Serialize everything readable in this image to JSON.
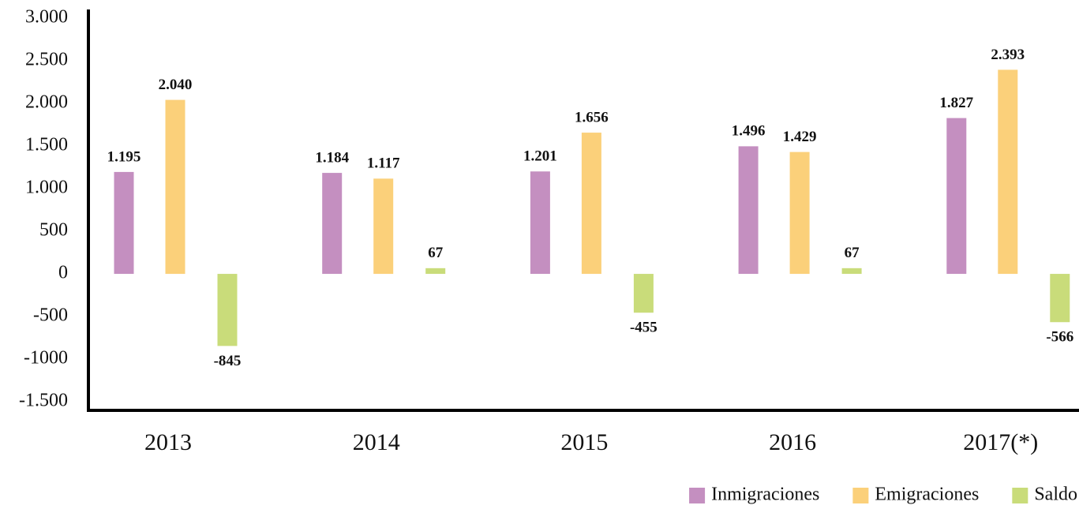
{
  "chart_data": {
    "type": "bar",
    "categories": [
      "2013",
      "2014",
      "2015",
      "2016",
      "2017(*)"
    ],
    "series": [
      {
        "name": "Inmigraciones",
        "color": "#c48fc0",
        "values": [
          1195,
          1184,
          1201,
          1496,
          1827
        ],
        "value_labels": [
          "1.195",
          "1.184",
          "1.201",
          "1.496",
          "1.827"
        ]
      },
      {
        "name": "Emigraciones",
        "color": "#fbd07a",
        "values": [
          2040,
          1117,
          1656,
          1429,
          2393
        ],
        "value_labels": [
          "2.040",
          "1.117",
          "1.656",
          "1.429",
          "2.393"
        ]
      },
      {
        "name": "Saldo",
        "color": "#c9dc7a",
        "values": [
          -845,
          67,
          -455,
          67,
          -566
        ]
      }
    ],
    "ylim": [
      -1600,
      3100
    ],
    "yticks": [
      {
        "value": -1500,
        "label": "-1.500"
      },
      -1000,
      -500,
      0,
      500,
      {
        "value": 1000,
        "label": "1.000"
      },
      {
        "value": 1500,
        "label": "1.500"
      },
      {
        "value": 2000,
        "label": "2.000"
      },
      {
        "value": 2500,
        "label": "2.500"
      },
      {
        "value": 3000,
        "label": "3.000"
      }
    ],
    "legend": "bottom-right"
  }
}
